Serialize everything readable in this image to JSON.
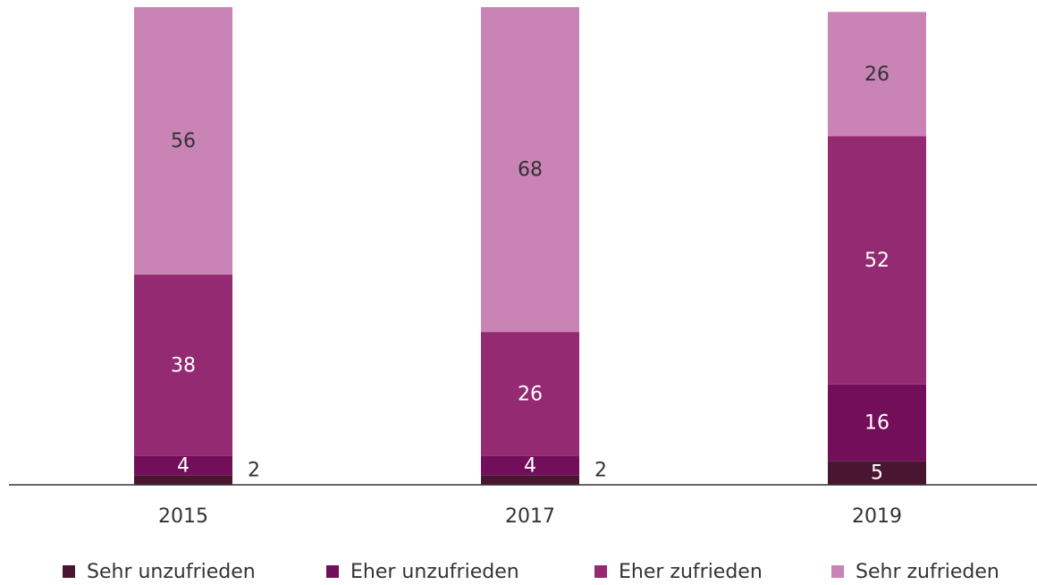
{
  "chart_data": {
    "type": "stacked_bar",
    "categories": [
      "2015",
      "2017",
      "2019"
    ],
    "series": [
      {
        "name": "Sehr unzufrieden",
        "color": "#4a1530",
        "values": [
          2,
          2,
          5
        ]
      },
      {
        "name": "Eher unzufrieden",
        "color": "#720e5a",
        "values": [
          4,
          4,
          16
        ]
      },
      {
        "name": "Eher zufrieden",
        "color": "#932a72",
        "values": [
          38,
          26,
          52
        ]
      },
      {
        "name": "Sehr zufrieden",
        "color": "#c983b4",
        "values": [
          56,
          68,
          26
        ]
      }
    ],
    "legend": "bottom"
  }
}
